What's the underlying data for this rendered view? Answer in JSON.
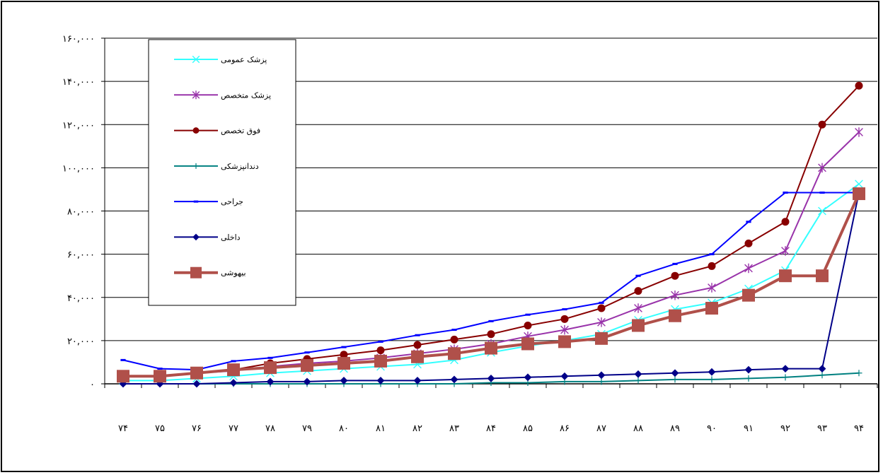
{
  "chart_data": {
    "type": "line",
    "title": "",
    "xlabel": "",
    "ylabel": "",
    "categories": [
      "۷۴",
      "۷۵",
      "۷۶",
      "۷۷",
      "۷۸",
      "۷۹",
      "۸۰",
      "۸۱",
      "۸۲",
      "۸۳",
      "۸۴",
      "۸۵",
      "۸۶",
      "۸۷",
      "۸۸",
      "۸۹",
      "۹۰",
      "۹۱",
      "۹۲",
      "۹۳",
      "۹۴"
    ],
    "ylim": [
      0,
      160000
    ],
    "yticks": [
      {
        "value": 0,
        "label": "۰"
      },
      {
        "value": 20000,
        "label": "۲۰,۰۰۰"
      },
      {
        "value": 40000,
        "label": "۴۰,۰۰۰"
      },
      {
        "value": 60000,
        "label": "۶۰,۰۰۰"
      },
      {
        "value": 80000,
        "label": "۸۰,۰۰۰"
      },
      {
        "value": 100000,
        "label": "۱۰۰,۰۰۰"
      },
      {
        "value": 120000,
        "label": "۱۲۰,۰۰۰"
      },
      {
        "value": 140000,
        "label": "۱۴۰,۰۰۰"
      },
      {
        "value": 160000,
        "label": "۱۶۰,۰۰۰"
      }
    ],
    "grid": true,
    "legend_position": "top-left",
    "series": [
      {
        "name": "پزشک عمومی",
        "color": "#33ffff",
        "marker": "x",
        "values": [
          1500,
          1500,
          2500,
          3500,
          5000,
          6000,
          7000,
          8000,
          9000,
          11000,
          14500,
          17500,
          20000,
          23000,
          29500,
          34500,
          37500,
          44000,
          52500,
          80000,
          92500
        ]
      },
      {
        "name": "پزشک متخصص",
        "color": "#9933aa",
        "marker": "star",
        "values": [
          3500,
          3500,
          5000,
          6000,
          8000,
          9500,
          10500,
          12000,
          14000,
          16000,
          18500,
          22000,
          25000,
          28500,
          35000,
          41000,
          44500,
          53500,
          61500,
          100000,
          116500
        ]
      },
      {
        "name": "فوق تخصص",
        "color": "#880000",
        "marker": "circle",
        "values": [
          3500,
          3500,
          5000,
          6500,
          9500,
          11500,
          13500,
          15500,
          18000,
          20500,
          23000,
          27000,
          30000,
          35000,
          43000,
          50000,
          54500,
          65000,
          75000,
          120000,
          138000
        ]
      },
      {
        "name": "دندانپزشکی",
        "color": "#008080",
        "marker": "plus",
        "values": [
          0,
          0,
          0,
          0,
          0,
          0,
          0,
          0,
          0,
          0,
          500,
          500,
          1000,
          1000,
          1500,
          2000,
          2000,
          2500,
          3000,
          4000,
          5000
        ]
      },
      {
        "name": "جراحی",
        "color": "#0000ff",
        "marker": "dash",
        "values": [
          11000,
          7000,
          6500,
          10500,
          12000,
          14500,
          17000,
          19500,
          22500,
          25000,
          29000,
          32000,
          34500,
          37500,
          50000,
          55500,
          60000,
          75000,
          88500,
          88500,
          88500
        ]
      },
      {
        "name": "داخلی",
        "color": "#000088",
        "marker": "diamond",
        "values": [
          0,
          0,
          0,
          500,
          1000,
          1000,
          1500,
          1500,
          1500,
          2000,
          2500,
          3000,
          3500,
          4000,
          4500,
          5000,
          5500,
          6500,
          7000,
          7000,
          88500
        ]
      },
      {
        "name": "بیهوشی",
        "color": "#b0504a",
        "marker": "square",
        "values": [
          3500,
          3500,
          5000,
          6500,
          7500,
          8500,
          9500,
          10500,
          12500,
          14000,
          16500,
          18500,
          19500,
          21000,
          27000,
          31500,
          35000,
          41000,
          50000,
          50000,
          88000
        ]
      }
    ]
  }
}
